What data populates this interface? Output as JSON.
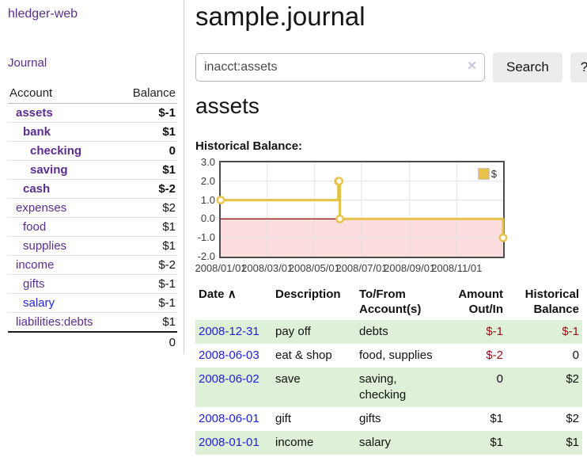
{
  "colors": {
    "link_purple": "#5c2d91",
    "link_blue": "#2121dd",
    "negative_red": "#941117",
    "faded_negative_red": "#b56a6a",
    "row_stripe_green": "#dff0d8",
    "chart_gold": "#e8c14a"
  },
  "sidebar": {
    "brand": "hledger-web",
    "journal_link": "Journal",
    "accounts": {
      "col_account": "Account",
      "col_balance": "Balance",
      "rows": [
        {
          "name": "assets",
          "balance": "$-1"
        },
        {
          "name": "bank",
          "balance": "$1"
        },
        {
          "name": "checking",
          "balance": "0"
        },
        {
          "name": "saving",
          "balance": "$1"
        },
        {
          "name": "cash",
          "balance": "$-2"
        },
        {
          "name": "expenses",
          "balance": "$2"
        },
        {
          "name": "food",
          "balance": "$1"
        },
        {
          "name": "supplies",
          "balance": "$1"
        },
        {
          "name": "income",
          "balance": "$-2"
        },
        {
          "name": "gifts",
          "balance": "$-1"
        },
        {
          "name": "salary",
          "balance": "$-1"
        },
        {
          "name": "liabilities:debts",
          "balance": "$1"
        }
      ],
      "total": "0"
    }
  },
  "main": {
    "title": "sample.journal",
    "search": {
      "value": "inacct:assets",
      "clear_icon": "✕",
      "button": "Search",
      "help": "?"
    },
    "account_heading": "assets",
    "chart_label": "Historical Balance:",
    "register": {
      "headers": {
        "date": "Date",
        "sort_icon": "∧",
        "description": "Description",
        "tofrom": "To/From Account(s)",
        "amount": "Amount Out/In",
        "balance": "Historical Balance"
      },
      "rows": [
        {
          "date": "2008-12-31",
          "description": "pay off",
          "accounts": "debts",
          "amount": "$-1",
          "balance": "$-1"
        },
        {
          "date": "2008-06-03",
          "description": "eat & shop",
          "accounts": "food, supplies",
          "amount": "$-2",
          "balance": "0"
        },
        {
          "date": "2008-06-02",
          "description": "save",
          "accounts": "saving, checking",
          "amount": "0",
          "balance": "$2"
        },
        {
          "date": "2008-06-01",
          "description": "gift",
          "accounts": "gifts",
          "amount": "$1",
          "balance": "$2"
        },
        {
          "date": "2008-01-01",
          "description": "income",
          "accounts": "salary",
          "amount": "$1",
          "balance": "$1"
        }
      ]
    }
  },
  "chart_data": {
    "type": "line",
    "step": true,
    "title": "Historical Balance:",
    "legend": {
      "label": "$",
      "position": "top-right"
    },
    "series": [
      {
        "name": "$",
        "color": "#e8c14a",
        "points": [
          {
            "x": "2008-01-01",
            "y": 1
          },
          {
            "x": "2008-06-01",
            "y": 2
          },
          {
            "x": "2008-06-02",
            "y": 2
          },
          {
            "x": "2008-06-03",
            "y": 0
          },
          {
            "x": "2008-12-31",
            "y": -1
          }
        ]
      }
    ],
    "xlim": [
      "2008-01-01",
      "2008-12-31"
    ],
    "ylim": [
      -2,
      3
    ],
    "x_ticks": [
      {
        "x": "2008-01-01",
        "label": "2008/01/01"
      },
      {
        "x": "2008-03-01",
        "label": "2008/03/01"
      },
      {
        "x": "2008-05-01",
        "label": "2008/05/01"
      },
      {
        "x": "2008-07-01",
        "label": "2008/07/01"
      },
      {
        "x": "2008-09-01",
        "label": "2008/09/01"
      },
      {
        "x": "2008-11-01",
        "label": "2008/11/01"
      }
    ],
    "y_ticks": [
      {
        "v": 3,
        "label": "3.0"
      },
      {
        "v": 2,
        "label": "2.0"
      },
      {
        "v": 1,
        "label": "1.0"
      },
      {
        "v": 0,
        "label": "0.0"
      },
      {
        "v": -1,
        "label": "-1.0"
      },
      {
        "v": -2,
        "label": "-2.0"
      }
    ],
    "grid": true,
    "negative_region_color": "#fbdddd",
    "zero_line_color": "#8b0000"
  }
}
